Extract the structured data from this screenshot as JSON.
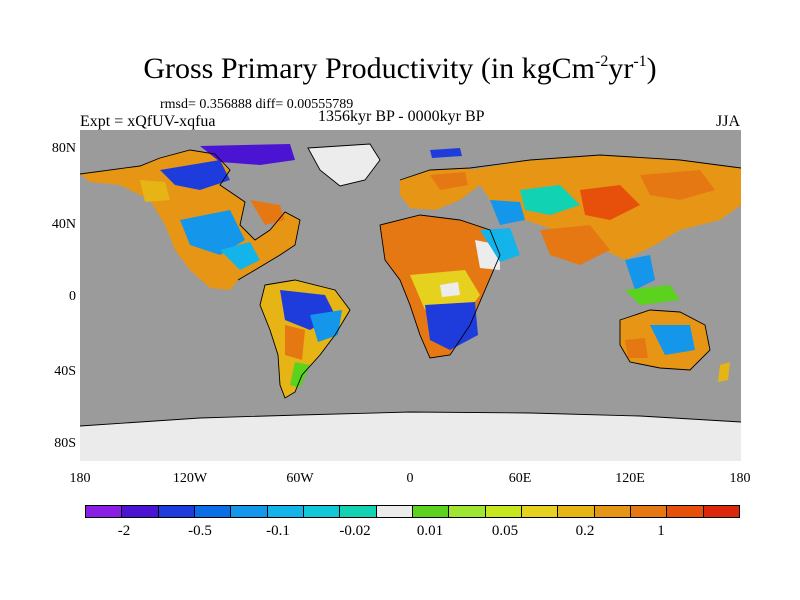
{
  "title": {
    "text": "Gross Primary Productivity (in kgCm",
    "exp1": "-2",
    "mid": "yr",
    "exp2": "-1",
    "close": ")"
  },
  "stats": "rmsd= 0.356888 diff= 0.00555789",
  "expt": "Expt = xQfUV-xqfua",
  "period": "1356kyr BP - 0000kyr BP",
  "season": "JJA",
  "map": {
    "ocean_color": "#9b9b9b",
    "ice_color": "#ebebeb",
    "lat_labels": [
      "80N",
      "40N",
      "0",
      "40S",
      "80S"
    ],
    "lon_labels": [
      "180",
      "120W",
      "60W",
      "0",
      "60E",
      "120E",
      "180"
    ]
  },
  "colorbar": {
    "colors": [
      "#8a1ee6",
      "#4a14d2",
      "#1e3cdc",
      "#0a6ee6",
      "#1496ea",
      "#12b4ea",
      "#10c8d8",
      "#12d2b4",
      "#ececec",
      "#5ad21e",
      "#9ee632",
      "#c8e61e",
      "#e6d21e",
      "#e6b414",
      "#e69614",
      "#e67814",
      "#e6500a",
      "#dc280a"
    ],
    "labels": [
      "-2",
      "-0.5",
      "-0.1",
      "-0.02",
      "0.01",
      "0.05",
      "0.2",
      "1"
    ]
  }
}
